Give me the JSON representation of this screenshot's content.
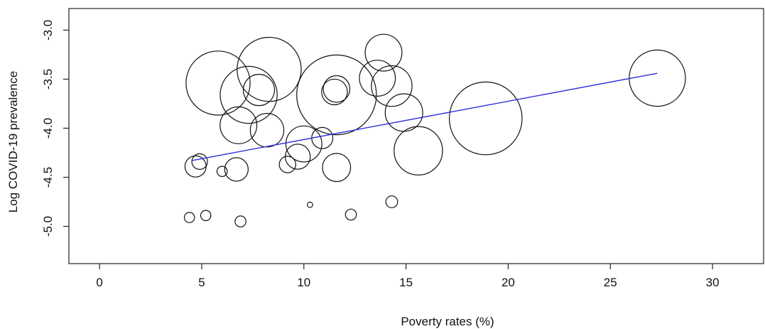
{
  "chart_data": {
    "type": "scatter",
    "xlabel": "Poverty rates (%)",
    "ylabel": "Log COVID-19 prevalence",
    "xlim": [
      -1.5,
      32.5
    ],
    "ylim": [
      -5.38,
      -2.78
    ],
    "xticks": [
      0,
      5,
      10,
      15,
      20,
      25,
      30
    ],
    "xtick_labels": [
      "0",
      "5",
      "10",
      "15",
      "20",
      "25",
      "30"
    ],
    "yticks": [
      -3.0,
      -3.5,
      -4.0,
      -4.5,
      -5.0
    ],
    "ytick_labels": [
      "-3.0",
      "-3.5",
      "-4.0",
      "-4.5",
      "-5.0"
    ],
    "grid": false,
    "bubble_size_shown": true,
    "points": [
      {
        "x": 5.8,
        "y": -3.54,
        "size": 8.2
      },
      {
        "x": 7.3,
        "y": -3.66,
        "size": 7.3
      },
      {
        "x": 7.8,
        "y": -3.61,
        "size": 4.0
      },
      {
        "x": 8.3,
        "y": -3.4,
        "size": 8.2
      },
      {
        "x": 6.8,
        "y": -3.97,
        "size": 4.7
      },
      {
        "x": 8.2,
        "y": -4.02,
        "size": 4.3
      },
      {
        "x": 4.7,
        "y": -4.39,
        "size": 2.7
      },
      {
        "x": 4.9,
        "y": -4.34,
        "size": 2.0
      },
      {
        "x": 6.0,
        "y": -4.44,
        "size": 1.3
      },
      {
        "x": 6.7,
        "y": -4.42,
        "size": 3.0
      },
      {
        "x": 9.2,
        "y": -4.37,
        "size": 2.1
      },
      {
        "x": 9.7,
        "y": -4.29,
        "size": 3.2
      },
      {
        "x": 10.0,
        "y": -4.16,
        "size": 4.6
      },
      {
        "x": 10.9,
        "y": -4.1,
        "size": 2.7
      },
      {
        "x": 11.6,
        "y": -3.66,
        "size": 10.2
      },
      {
        "x": 11.5,
        "y": -3.63,
        "size": 3.3
      },
      {
        "x": 11.6,
        "y": -3.6,
        "size": 3.4
      },
      {
        "x": 11.6,
        "y": -4.4,
        "size": 3.6
      },
      {
        "x": 13.6,
        "y": -3.49,
        "size": 4.6
      },
      {
        "x": 13.9,
        "y": -3.23,
        "size": 4.7
      },
      {
        "x": 14.3,
        "y": -3.57,
        "size": 5.2
      },
      {
        "x": 14.9,
        "y": -3.84,
        "size": 4.8
      },
      {
        "x": 15.6,
        "y": -4.23,
        "size": 6.2
      },
      {
        "x": 18.9,
        "y": -3.9,
        "size": 9.3
      },
      {
        "x": 27.3,
        "y": -3.49,
        "size": 7.2
      },
      {
        "x": 4.4,
        "y": -4.91,
        "size": 1.3
      },
      {
        "x": 5.2,
        "y": -4.89,
        "size": 1.3
      },
      {
        "x": 6.9,
        "y": -4.95,
        "size": 1.4
      },
      {
        "x": 10.3,
        "y": -4.78,
        "size": 0.7
      },
      {
        "x": 12.3,
        "y": -4.88,
        "size": 1.4
      },
      {
        "x": 14.3,
        "y": -4.75,
        "size": 1.5
      }
    ],
    "trendline": {
      "x": [
        4.5,
        27.3
      ],
      "y": [
        -4.33,
        -3.44
      ],
      "color": "#2f2fd8"
    }
  }
}
